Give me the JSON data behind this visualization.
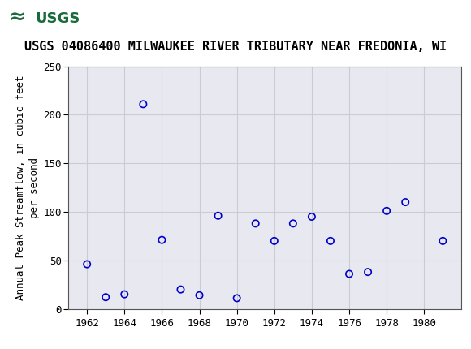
{
  "title": "USGS 04086400 MILWAUKEE RIVER TRIBUTARY NEAR FREDONIA, WI",
  "ylabel": "Annual Peak Streamflow, in cubic feet\nper second",
  "xlabel": "",
  "years": [
    1962,
    1963,
    1964,
    1965,
    1966,
    1967,
    1968,
    1969,
    1970,
    1971,
    1972,
    1973,
    1974,
    1975,
    1976,
    1977,
    1978,
    1979,
    1981
  ],
  "values": [
    46,
    12,
    15,
    211,
    71,
    20,
    14,
    96,
    11,
    88,
    70,
    88,
    95,
    70,
    36,
    38,
    101,
    110,
    70
  ],
  "xlim": [
    1961,
    1982
  ],
  "ylim": [
    0,
    250
  ],
  "xticks": [
    1962,
    1964,
    1966,
    1968,
    1970,
    1972,
    1974,
    1976,
    1978,
    1980
  ],
  "yticks": [
    0,
    50,
    100,
    150,
    200,
    250
  ],
  "marker_color": "#0000cc",
  "marker_facecolor": "none",
  "marker_style": "o",
  "marker_size": 6,
  "marker_linewidth": 1.2,
  "grid_color": "#cccccc",
  "plot_bg_color": "#e8e8f0",
  "fig_bg_color": "#ffffff",
  "header_bg_color": "#1a6b3c",
  "header_text_color": "#ffffff",
  "title_fontsize": 11,
  "axis_label_fontsize": 9,
  "tick_fontsize": 9,
  "font_family": "DejaVu Sans"
}
